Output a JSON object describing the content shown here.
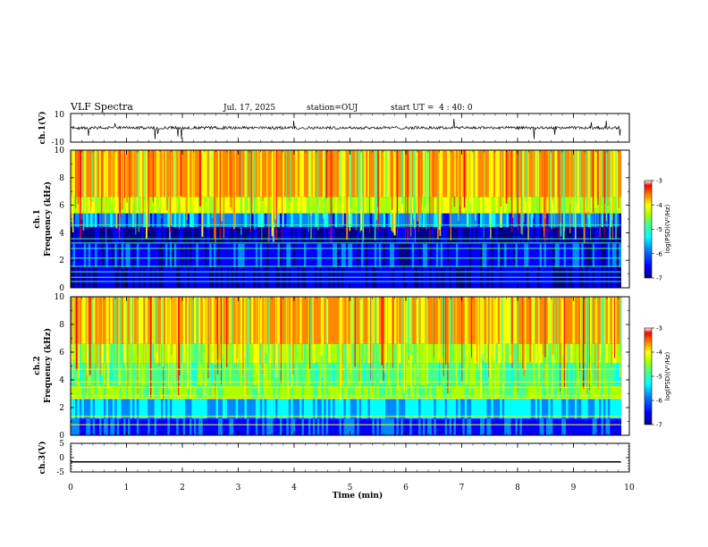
{
  "header": {
    "title": "VLF Spectra",
    "date": "Jul. 17, 2025",
    "station": "station=OUJ",
    "start": "start UT =  4 : 40: 0"
  },
  "colors": {
    "colormap": [
      "#000088",
      "#0000ff",
      "#0088ff",
      "#00ffff",
      "#44ff88",
      "#aaff00",
      "#ffff00",
      "#ff8800",
      "#ff0000",
      "#ffffff"
    ],
    "trace": "#000000"
  },
  "chart_data": [
    {
      "type": "line",
      "ylabel": "ch.1(V)",
      "ylim": [
        -10,
        10
      ],
      "yticks": [
        "10",
        "-10"
      ],
      "note": "waveform trace near 0 V with sporadic negative spikes"
    },
    {
      "type": "heatmap",
      "ylabel": "ch.1",
      "ylabel2": "Frequency (kHz)",
      "ylim": [
        0,
        10
      ],
      "yticks": [
        "0",
        "2",
        "4",
        "6",
        "8",
        "10"
      ],
      "colorbar": {
        "label": "log(PSD)(V²/Hz)",
        "range": [
          -7,
          -3
        ],
        "ticks": [
          "-3",
          "-4",
          "-5",
          "-6",
          "-7"
        ]
      }
    },
    {
      "type": "heatmap",
      "ylabel": "ch.2",
      "ylabel2": "Frequency (kHz)",
      "ylim": [
        0,
        10
      ],
      "yticks": [
        "0",
        "2",
        "4",
        "6",
        "8",
        "10"
      ],
      "colorbar": {
        "label": "log(PSD)(V²/Hz)",
        "range": [
          -7,
          -3
        ],
        "ticks": [
          "-3",
          "-4",
          "-5",
          "-6",
          "-7"
        ]
      }
    },
    {
      "type": "line",
      "ylabel": "ch.3(V)",
      "ylim": [
        -5,
        5
      ],
      "yticks": [
        "5",
        "0",
        "-5"
      ],
      "values": [
        -1.5
      ],
      "xrange": [
        0,
        9.85
      ]
    }
  ],
  "xaxis": {
    "label": "Time (min)",
    "range": [
      0,
      10
    ],
    "ticks": [
      "0",
      "1",
      "2",
      "3",
      "4",
      "5",
      "6",
      "7",
      "8",
      "9",
      "10"
    ]
  }
}
